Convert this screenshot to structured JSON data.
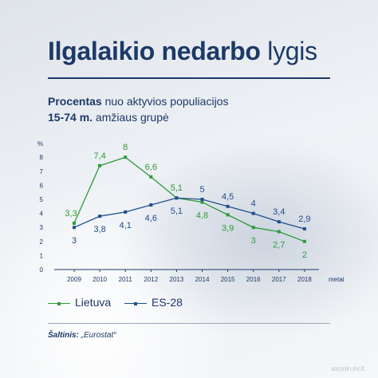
{
  "header": {
    "title_bold": "Ilgalaikio nedarbo",
    "title_light": "lygis",
    "subtitle_line1_bold": "Procentas",
    "subtitle_line1_rest": " nuo aktyvios populiacijos",
    "subtitle_line2_bold": "15-74 m.",
    "subtitle_line2_rest": " amžiaus grupė"
  },
  "chart_data": {
    "type": "line",
    "ylabel": "%",
    "xlabel": "metai",
    "x": [
      "2009",
      "2010",
      "2011",
      "2012",
      "2013",
      "2014",
      "2015",
      "2016",
      "2017",
      "2018"
    ],
    "yticks": [
      "0",
      "1",
      "2",
      "3",
      "4",
      "5",
      "6",
      "7",
      "8"
    ],
    "ylim": [
      0,
      8
    ],
    "grid": false,
    "legend_position": "bottom-left",
    "series": [
      {
        "name": "Lietuva",
        "color": "#2e9a3a",
        "values": [
          3.3,
          7.4,
          8,
          6.6,
          5.1,
          4.8,
          3.9,
          3,
          2.7,
          2
        ],
        "labels": [
          "3,3",
          "7,4",
          "8",
          "6,6",
          "5,1",
          "4,8",
          "3,9",
          "3",
          "2,7",
          "2"
        ]
      },
      {
        "name": "ES-28",
        "color": "#1f4e8c",
        "values": [
          3,
          3.8,
          4.1,
          4.6,
          5.1,
          5,
          4.5,
          4,
          3.4,
          2.9
        ],
        "labels": [
          "3",
          "3,8",
          "4,1",
          "4,6",
          "5,1",
          "5",
          "4,5",
          "4",
          "3,4",
          "2,9"
        ]
      }
    ]
  },
  "footer": {
    "source_label": "Šaltinis:",
    "source_value": " „Eurostat“",
    "watermark": "socmin.lrv.lt"
  }
}
